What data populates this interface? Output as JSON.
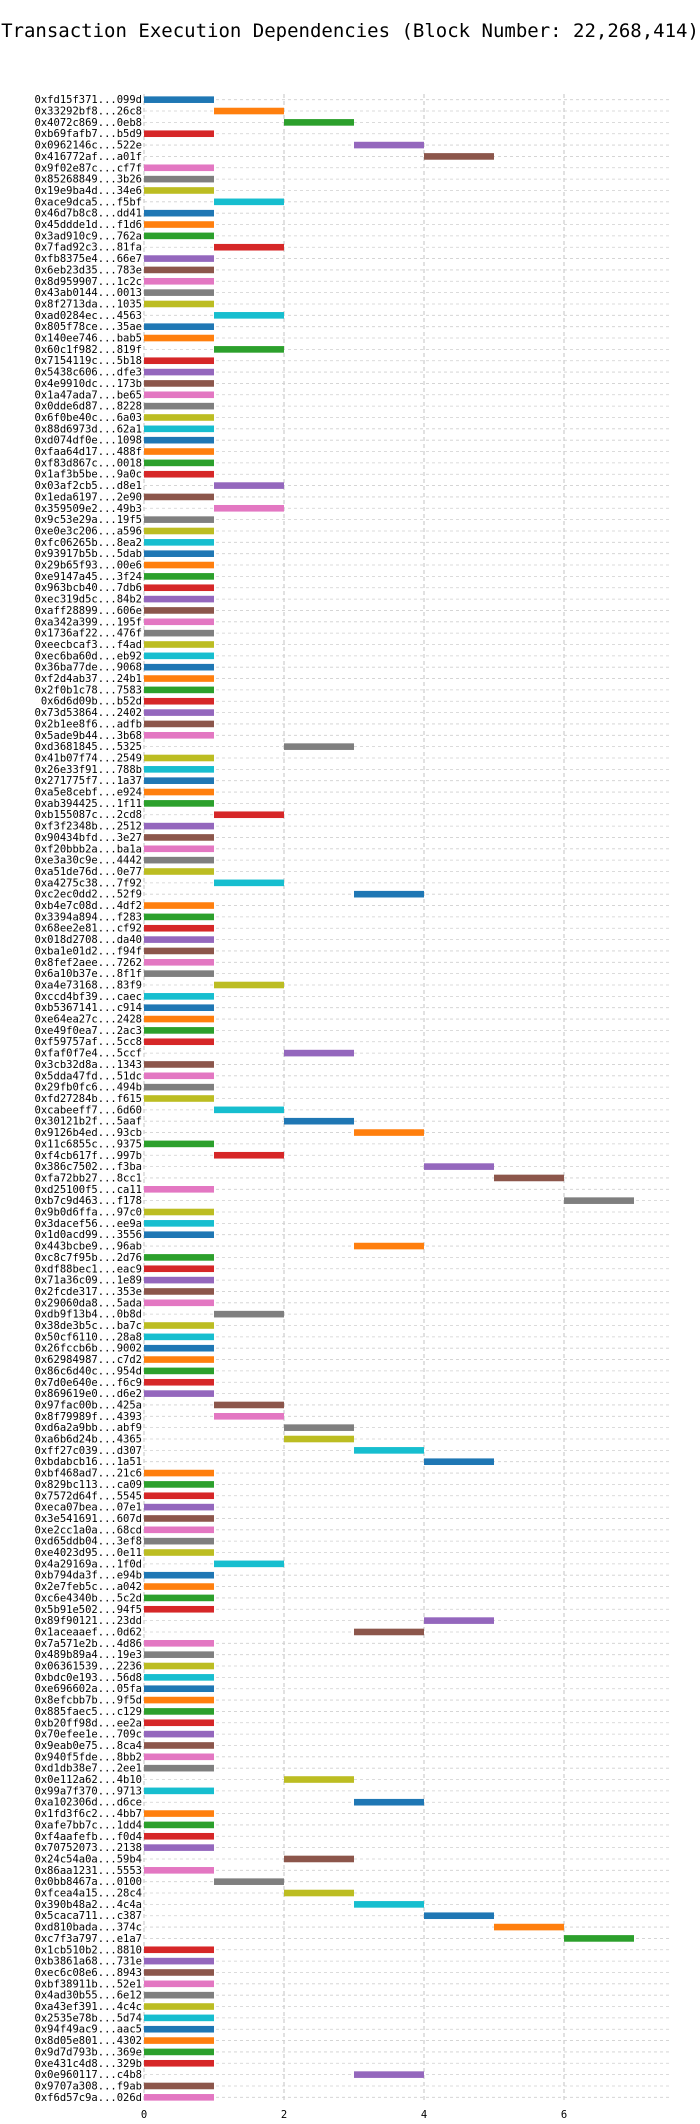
{
  "chart_data": {
    "type": "bar",
    "orientation": "horizontal",
    "title": "Transaction Execution Dependencies (Block Number: 22,268,414)",
    "xlabel": "",
    "ylabel": "",
    "xlim": [
      0,
      7.5
    ],
    "xticks": [
      0,
      2,
      4,
      6
    ],
    "grid": true,
    "palette": [
      "#1f77b4",
      "#ff7f0e",
      "#2ca02c",
      "#d62728",
      "#9467bd",
      "#8c564b",
      "#e377c2",
      "#7f7f7f",
      "#bcbd22",
      "#17becf"
    ],
    "categories": [
      "0xfd15f371...099d",
      "0x33292bf8...26c8",
      "0x4072c869...0eb8",
      "0xb69fafb7...b5d9",
      "0x0962146c...522e",
      "0x416772af...a01f",
      "0x9f02e87c...cf7f",
      "0x85268849...3b26",
      "0x19e9ba4d...34e6",
      "0xace9dca5...f5bf",
      "0x46d7b8c8...dd41",
      "0x45ddde1d...f1d6",
      "0x3ad910c9...762a",
      "0x7fad92c3...81fa",
      "0xfb8375e4...66e7",
      "0x6eb23d35...783e",
      "0x8d959907...1c2c",
      "0x43ab0144...0013",
      "0x8f2713da...1035",
      "0xad0284ec...4563",
      "0x805f78ce...35ae",
      "0x140ee746...bab5",
      "0x60c1f982...819f",
      "0x7154119c...5b18",
      "0x5438c606...dfe3",
      "0x4e9910dc...173b",
      "0x1a47ada7...be65",
      "0x0dde6d87...8228",
      "0x6f0be40c...6a03",
      "0x88d6973d...62a1",
      "0xd074df0e...1098",
      "0xfaa64d17...488f",
      "0xf83d867c...0018",
      "0x1af3b5be...9a0c",
      "0x03af2cb5...d8e1",
      "0x1eda6197...2e90",
      "0x359509e2...49b3",
      "0x9c53e29a...19f5",
      "0xe0e3c206...a596",
      "0xfc06265b...8ea2",
      "0x93917b5b...5dab",
      "0x29b65f93...00e6",
      "0xe9147a45...3f24",
      "0x963bcb40...7db6",
      "0xec319d5c...84b2",
      "0xaff28899...606e",
      "0xa342a399...195f",
      "0x1736af22...476f",
      "0xeecbcaf3...f4ad",
      "0xec6ba60d...eb92",
      "0x36ba77de...9068",
      "0xf2d4ab37...24b1",
      "0x2f0b1c78...7583",
      "0x6d6d09b...b52d",
      "0x73d53864...2402",
      "0x2b1ee8f6...adfb",
      "0x5ade9b44...3b68",
      "0xd3681845...5325",
      "0x41b07f74...2549",
      "0x26e33f91...788b",
      "0x271775f7...1a37",
      "0xa5e8cebf...e924",
      "0xab394425...1f11",
      "0xb155087c...2cd8",
      "0xf3f2348b...2512",
      "0x90434bfd...3e27",
      "0xf20bbb2a...ba1a",
      "0xe3a30c9e...4442",
      "0xa51de76d...0e77",
      "0xa4275c38...7f92",
      "0xc2ec0dd2...52f9",
      "0xb4e7c08d...4df2",
      "0x3394a894...f283",
      "0x68ee2e81...cf92",
      "0x018d2708...da40",
      "0xba1e01d2...f94f",
      "0x8fef2aee...7262",
      "0x6a10b37e...8f1f",
      "0xa4e73168...83f9",
      "0xccd4bf39...caec",
      "0xb5367141...c914",
      "0xe64ea27c...2428",
      "0xe49f0ea7...2ac3",
      "0xf59757af...5cc8",
      "0xfaf0f7e4...5ccf",
      "0x3cb32d8a...1343",
      "0x5dda47fd...51dc",
      "0x29fb0fc6...494b",
      "0xfd27284b...f615",
      "0xcabeeff7...6d60",
      "0x30121b2f...5aaf",
      "0x9126b4ed...93cb",
      "0x11c6855c...9375",
      "0xf4cb617f...997b",
      "0x386c7502...f3ba",
      "0xfa72bb27...8cc1",
      "0xd25100f5...ca11",
      "0xb7c9d463...f178",
      "0x9b0d6ffa...97c0",
      "0x3dacef56...ee9a",
      "0x1d0acd99...3556",
      "0x443bcbe9...96ab",
      "0xc8c7f95b...2d76",
      "0xdf88bec1...eac9",
      "0x71a36c09...1e89",
      "0x2fcde317...353e",
      "0x29060da8...5ada",
      "0xdb9f13b4...0b8d",
      "0x38de3b5c...ba7c",
      "0x50cf6110...28a8",
      "0x26fccb6b...9002",
      "0x62984987...c7d2",
      "0x86c6d40c...954d",
      "0x7d0e640e...f6c9",
      "0x869619e0...d6e2",
      "0x97fac00b...425a",
      "0x8f79989f...4393",
      "0xd6a2a9bb...abf9",
      "0xa6b6d24b...4365",
      "0xff27c039...d307",
      "0xbdabcb16...1a51",
      "0xbf468ad7...21c6",
      "0x829bc113...ca09",
      "0x7572d64f...5545",
      "0xeca07bea...07e1",
      "0x3e541691...607d",
      "0xe2cc1a0a...68cd",
      "0xd65ddb04...3ef8",
      "0xe4023d95...0e11",
      "0x4a29169a...1f0d",
      "0xb794da3f...e94b",
      "0x2e7feb5c...a042",
      "0xc6e4340b...5c2d",
      "0x5b91e502...94f5",
      "0x89f90121...23dd",
      "0x1aceaaef...0d62",
      "0x7a571e2b...4d86",
      "0x489b89a4...19e3",
      "0x06361539...2236",
      "0xbdc0e193...56d8",
      "0xe696602a...05fa",
      "0x8efcbb7b...9f5d",
      "0x885faec5...c129",
      "0xb20ff98d...ee2a",
      "0x70efee1e...709c",
      "0x9eab0e75...8ca4",
      "0x940f5fde...8bb2",
      "0xd1db38e7...2ee1",
      "0x0e112a62...4b10",
      "0x99a7f370...9713",
      "0xa102306d...d6ce",
      "0x1fd3f6c2...4bb7",
      "0xafe7bb7c...1dd4",
      "0xf4aafefb...f0d4",
      "0x70752073...2138",
      "0x24c54a0a...59b4",
      "0x86aa1231...5553",
      "0x0bb8467a...0100",
      "0xfcea4a15...28c4",
      "0x390b48a2...4c4a",
      "0x5caca711...c387",
      "0xd810bada...374c",
      "0xc7f3a797...e1a7",
      "0x1cb510b2...8810",
      "0xb3861a68...731e",
      "0xec6c08e6...8943",
      "0xbf38911b...52e1",
      "0x4ad30b55...6e12",
      "0xa43ef391...4c4c",
      "0x2535e78b...5d74",
      "0x94f49ac9...aac5",
      "0x8d05e801...4302",
      "0x9d7d793b...369e",
      "0xe431c4d8...329b",
      "0x0e960117...c4b8",
      "0x9707a308...f9ab",
      "0xf6d57c9a...026d"
    ],
    "values": [
      [
        0,
        1
      ],
      [
        1,
        2
      ],
      [
        2,
        3
      ],
      [
        0,
        1
      ],
      [
        3,
        4
      ],
      [
        4,
        5
      ],
      [
        0,
        1
      ],
      [
        0,
        1
      ],
      [
        0,
        1
      ],
      [
        1,
        2
      ],
      [
        0,
        1
      ],
      [
        0,
        1
      ],
      [
        0,
        1
      ],
      [
        1,
        2
      ],
      [
        0,
        1
      ],
      [
        0,
        1
      ],
      [
        0,
        1
      ],
      [
        0,
        1
      ],
      [
        0,
        1
      ],
      [
        1,
        2
      ],
      [
        0,
        1
      ],
      [
        0,
        1
      ],
      [
        1,
        2
      ],
      [
        0,
        1
      ],
      [
        0,
        1
      ],
      [
        0,
        1
      ],
      [
        0,
        1
      ],
      [
        0,
        1
      ],
      [
        0,
        1
      ],
      [
        0,
        1
      ],
      [
        0,
        1
      ],
      [
        0,
        1
      ],
      [
        0,
        1
      ],
      [
        0,
        1
      ],
      [
        1,
        2
      ],
      [
        0,
        1
      ],
      [
        1,
        2
      ],
      [
        0,
        1
      ],
      [
        0,
        1
      ],
      [
        0,
        1
      ],
      [
        0,
        1
      ],
      [
        0,
        1
      ],
      [
        0,
        1
      ],
      [
        0,
        1
      ],
      [
        0,
        1
      ],
      [
        0,
        1
      ],
      [
        0,
        1
      ],
      [
        0,
        1
      ],
      [
        0,
        1
      ],
      [
        0,
        1
      ],
      [
        0,
        1
      ],
      [
        0,
        1
      ],
      [
        0,
        1
      ],
      [
        0,
        1
      ],
      [
        0,
        1
      ],
      [
        0,
        1
      ],
      [
        0,
        1
      ],
      [
        2,
        3
      ],
      [
        0,
        1
      ],
      [
        0,
        1
      ],
      [
        0,
        1
      ],
      [
        0,
        1
      ],
      [
        0,
        1
      ],
      [
        1,
        2
      ],
      [
        0,
        1
      ],
      [
        0,
        1
      ],
      [
        0,
        1
      ],
      [
        0,
        1
      ],
      [
        0,
        1
      ],
      [
        1,
        2
      ],
      [
        3,
        4
      ],
      [
        0,
        1
      ],
      [
        0,
        1
      ],
      [
        0,
        1
      ],
      [
        0,
        1
      ],
      [
        0,
        1
      ],
      [
        0,
        1
      ],
      [
        0,
        1
      ],
      [
        1,
        2
      ],
      [
        0,
        1
      ],
      [
        0,
        1
      ],
      [
        0,
        1
      ],
      [
        0,
        1
      ],
      [
        0,
        1
      ],
      [
        2,
        3
      ],
      [
        0,
        1
      ],
      [
        0,
        1
      ],
      [
        0,
        1
      ],
      [
        0,
        1
      ],
      [
        1,
        2
      ],
      [
        2,
        3
      ],
      [
        3,
        4
      ],
      [
        0,
        1
      ],
      [
        1,
        2
      ],
      [
        4,
        5
      ],
      [
        5,
        6
      ],
      [
        0,
        1
      ],
      [
        6,
        7
      ],
      [
        0,
        1
      ],
      [
        0,
        1
      ],
      [
        0,
        1
      ],
      [
        3,
        4
      ],
      [
        0,
        1
      ],
      [
        0,
        1
      ],
      [
        0,
        1
      ],
      [
        0,
        1
      ],
      [
        0,
        1
      ],
      [
        1,
        2
      ],
      [
        0,
        1
      ],
      [
        0,
        1
      ],
      [
        0,
        1
      ],
      [
        0,
        1
      ],
      [
        0,
        1
      ],
      [
        0,
        1
      ],
      [
        0,
        1
      ],
      [
        1,
        2
      ],
      [
        1,
        2
      ],
      [
        2,
        3
      ],
      [
        2,
        3
      ],
      [
        3,
        4
      ],
      [
        4,
        5
      ],
      [
        0,
        1
      ],
      [
        0,
        1
      ],
      [
        0,
        1
      ],
      [
        0,
        1
      ],
      [
        0,
        1
      ],
      [
        0,
        1
      ],
      [
        0,
        1
      ],
      [
        0,
        1
      ],
      [
        1,
        2
      ],
      [
        0,
        1
      ],
      [
        0,
        1
      ],
      [
        0,
        1
      ],
      [
        0,
        1
      ],
      [
        4,
        5
      ],
      [
        3,
        4
      ],
      [
        0,
        1
      ],
      [
        0,
        1
      ],
      [
        0,
        1
      ],
      [
        0,
        1
      ],
      [
        0,
        1
      ],
      [
        0,
        1
      ],
      [
        0,
        1
      ],
      [
        0,
        1
      ],
      [
        0,
        1
      ],
      [
        0,
        1
      ],
      [
        0,
        1
      ],
      [
        0,
        1
      ],
      [
        2,
        3
      ],
      [
        0,
        1
      ],
      [
        3,
        4
      ],
      [
        0,
        1
      ],
      [
        0,
        1
      ],
      [
        0,
        1
      ],
      [
        0,
        1
      ],
      [
        2,
        3
      ],
      [
        0,
        1
      ],
      [
        1,
        2
      ],
      [
        2,
        3
      ],
      [
        3,
        4
      ],
      [
        4,
        5
      ],
      [
        5,
        6
      ],
      [
        6,
        7
      ],
      [
        0,
        1
      ],
      [
        0,
        1
      ],
      [
        0,
        1
      ],
      [
        0,
        1
      ],
      [
        0,
        1
      ],
      [
        0,
        1
      ],
      [
        0,
        1
      ],
      [
        0,
        1
      ],
      [
        0,
        1
      ],
      [
        0,
        1
      ],
      [
        0,
        1
      ],
      [
        3,
        4
      ],
      [
        0,
        1
      ],
      [
        0,
        1
      ]
    ]
  }
}
